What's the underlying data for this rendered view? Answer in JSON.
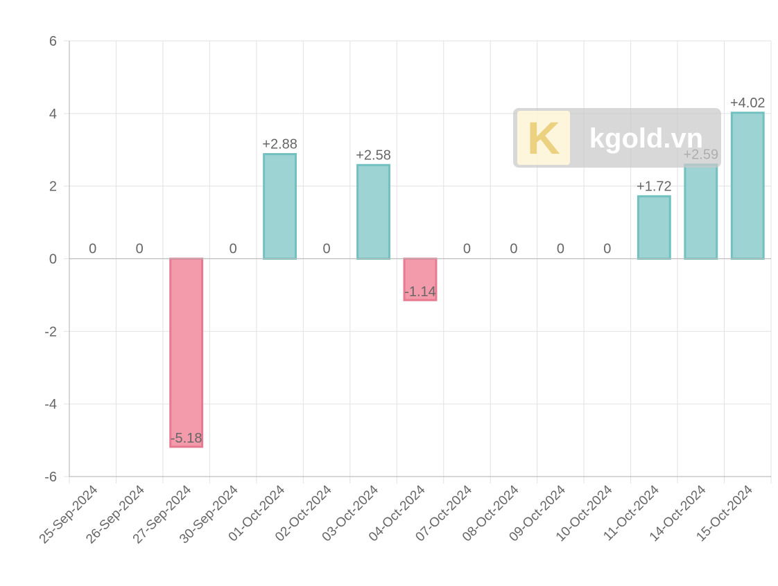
{
  "chart_data": {
    "type": "bar",
    "title": "",
    "xlabel": "",
    "ylabel": "",
    "ylim": [
      -6,
      6
    ],
    "yticks": [
      6,
      4,
      2,
      0,
      -2,
      -4,
      -6
    ],
    "grid": true,
    "legend": "none",
    "categories": [
      "25-Sep-2024",
      "26-Sep-2024",
      "27-Sep-2024",
      "30-Sep-2024",
      "01-Oct-2024",
      "02-Oct-2024",
      "03-Oct-2024",
      "04-Oct-2024",
      "07-Oct-2024",
      "08-Oct-2024",
      "09-Oct-2024",
      "10-Oct-2024",
      "11-Oct-2024",
      "14-Oct-2024",
      "15-Oct-2024"
    ],
    "values": [
      0,
      0,
      -5.18,
      0,
      2.88,
      0,
      2.58,
      -1.14,
      0,
      0,
      0,
      0,
      1.72,
      2.59,
      4.02
    ],
    "data_labels": [
      "0",
      "0",
      "-5.18",
      "0",
      "+2.88",
      "0",
      "+2.58",
      "-1.14",
      "0",
      "0",
      "0",
      "0",
      "+1.72",
      "+2.59",
      "+4.02"
    ],
    "colors": {
      "positive_fill": "#9dd3d3",
      "positive_stroke": "#72c0bf",
      "negative_fill": "#f39aab",
      "negative_stroke": "#e87a90"
    }
  },
  "watermark": {
    "text": "kgold.vn",
    "logo_letter": "K"
  }
}
